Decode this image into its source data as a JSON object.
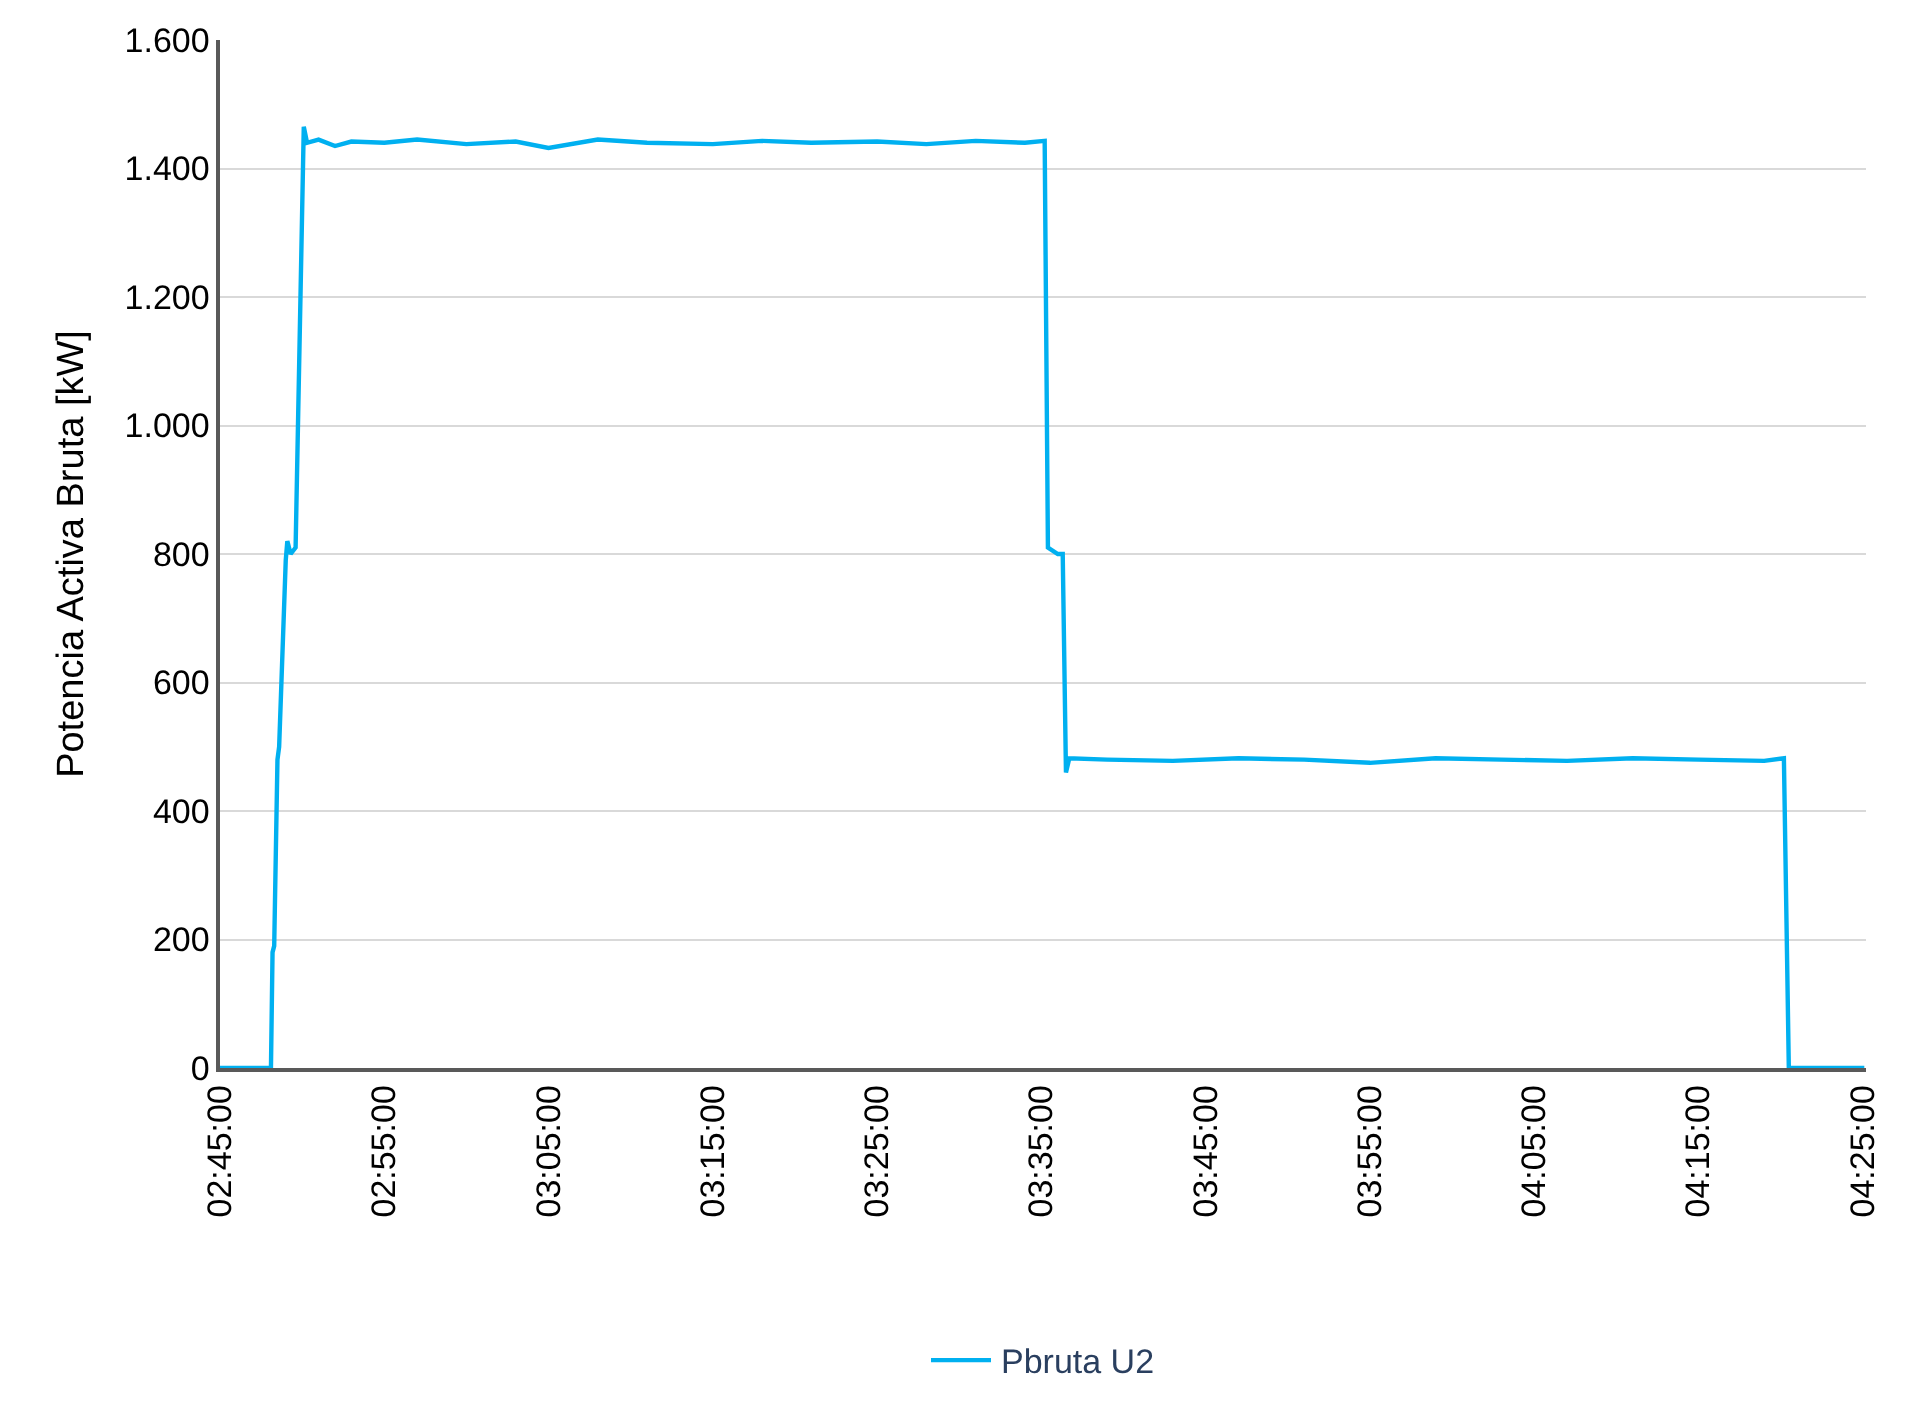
{
  "chart_data": {
    "type": "line",
    "ylabel": "Potencia Activa Bruta [kW]",
    "x": [
      2.75,
      2.8017,
      2.8033,
      2.805,
      2.8083,
      2.81,
      2.8167,
      2.8183,
      2.8217,
      2.8267,
      2.835,
      2.8383,
      2.85,
      2.8667,
      2.8833,
      2.9167,
      2.95,
      3.0,
      3.05,
      3.0833,
      3.1333,
      3.1833,
      3.25,
      3.3,
      3.35,
      3.4167,
      3.4667,
      3.5167,
      3.5667,
      3.5867,
      3.59,
      3.6,
      3.605,
      3.6083,
      3.6117,
      3.65,
      3.7167,
      3.7833,
      3.85,
      3.9167,
      3.9833,
      4.05,
      4.1167,
      4.1833,
      4.25,
      4.3167,
      4.3367,
      4.3417,
      4.4183
    ],
    "series": [
      {
        "name": "Pbruta U2",
        "color": "#00b0f0",
        "values": [
          0,
          0,
          180,
          190,
          480,
          500,
          790,
          820,
          800,
          810,
          1465,
          1440,
          1445,
          1435,
          1442,
          1440,
          1445,
          1438,
          1442,
          1432,
          1445,
          1440,
          1438,
          1443,
          1440,
          1442,
          1438,
          1443,
          1440,
          1443,
          810,
          800,
          800,
          460,
          482,
          480,
          478,
          482,
          480,
          475,
          482,
          480,
          478,
          482,
          480,
          478,
          482,
          0,
          0
        ]
      }
    ],
    "xlim": [
      2.75,
      4.42
    ],
    "xticks": [
      {
        "value": 2.75,
        "label": "02:45:00"
      },
      {
        "value": 2.9167,
        "label": "02:55:00"
      },
      {
        "value": 3.0833,
        "label": "03:05:00"
      },
      {
        "value": 3.25,
        "label": "03:15:00"
      },
      {
        "value": 3.4167,
        "label": "03:25:00"
      },
      {
        "value": 3.5833,
        "label": "03:35:00"
      },
      {
        "value": 3.75,
        "label": "03:45:00"
      },
      {
        "value": 3.9167,
        "label": "03:55:00"
      },
      {
        "value": 4.0833,
        "label": "04:05:00"
      },
      {
        "value": 4.25,
        "label": "04:15:00"
      },
      {
        "value": 4.4167,
        "label": "04:25:00"
      }
    ],
    "ylim": [
      0,
      1600
    ],
    "yticks": [
      {
        "value": 0,
        "label": "0"
      },
      {
        "value": 200,
        "label": "200"
      },
      {
        "value": 400,
        "label": "400"
      },
      {
        "value": 600,
        "label": "600"
      },
      {
        "value": 800,
        "label": "800"
      },
      {
        "value": 1000,
        "label": "1.000"
      },
      {
        "value": 1200,
        "label": "1.200"
      },
      {
        "value": 1400,
        "label": "1.400"
      },
      {
        "value": 1600,
        "label": "1.600"
      }
    ],
    "grid": "y",
    "legend": "bottom",
    "marker": "none",
    "line_style": "solid"
  }
}
